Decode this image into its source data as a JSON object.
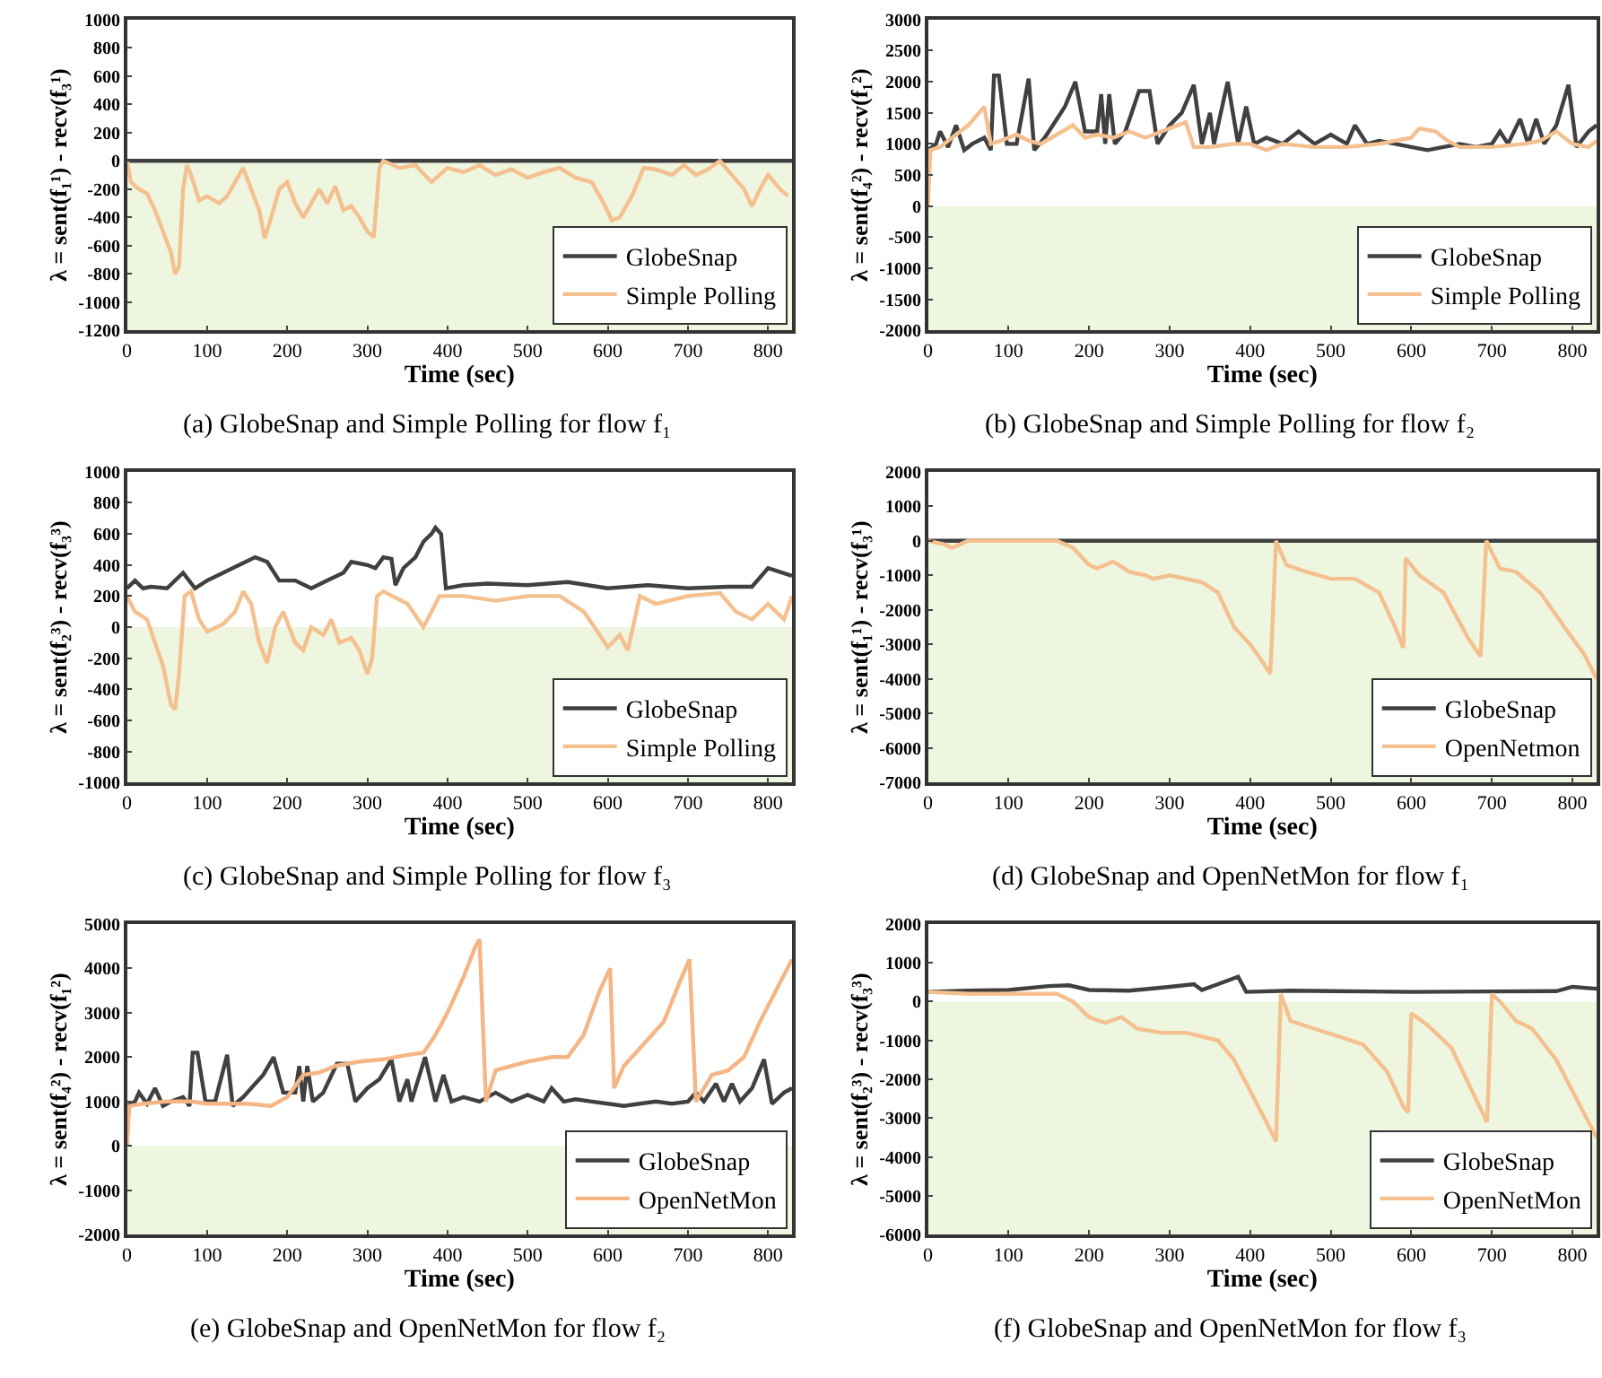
{
  "chart_data": [
    {
      "type": "line",
      "title": "(a) GlobeSnap and Simple Polling for flow f₁",
      "xlabel": "Time (sec)",
      "ylabel": "λ = sent(f₁¹) - recv(f₃¹)",
      "xlim": [
        0,
        830
      ],
      "xticks": [
        0,
        100,
        200,
        300,
        400,
        500,
        600,
        700,
        800
      ],
      "ylim": [
        -1200,
        1000
      ],
      "yticks": [
        -1200,
        -1000,
        -800,
        -600,
        -400,
        -200,
        0,
        200,
        400,
        600,
        800,
        1000
      ],
      "legend": "bottom right",
      "grid": false,
      "marker": "none",
      "line_style": "solid",
      "bands": [
        {
          "axis": "y",
          "from": -1200,
          "to": 0,
          "color": "#eef6df"
        }
      ],
      "series": [
        {
          "name": "GlobeSnap",
          "color": "#404040",
          "x": [
            0,
            830
          ],
          "values": [
            0,
            0
          ]
        },
        {
          "name": "Simple Polling",
          "color": "#f5c08f",
          "x": [
            0,
            5,
            15,
            25,
            35,
            45,
            55,
            60,
            65,
            70,
            75,
            80,
            90,
            100,
            115,
            125,
            135,
            145,
            155,
            165,
            172,
            180,
            190,
            200,
            210,
            220,
            230,
            240,
            250,
            260,
            270,
            280,
            290,
            300,
            308,
            315,
            320,
            340,
            360,
            380,
            400,
            420,
            440,
            460,
            480,
            500,
            520,
            540,
            560,
            580,
            595,
            605,
            615,
            630,
            645,
            660,
            680,
            695,
            710,
            725,
            740,
            755,
            770,
            780,
            790,
            800,
            815,
            825
          ],
          "values": [
            0,
            -150,
            -200,
            -230,
            -350,
            -500,
            -650,
            -800,
            -750,
            -200,
            -30,
            -100,
            -280,
            -250,
            -300,
            -250,
            -150,
            -50,
            -200,
            -350,
            -550,
            -400,
            -200,
            -150,
            -300,
            -400,
            -300,
            -200,
            -300,
            -180,
            -350,
            -320,
            -400,
            -500,
            -540,
            -50,
            0,
            -50,
            -30,
            -150,
            -50,
            -80,
            -30,
            -100,
            -60,
            -120,
            -80,
            -50,
            -120,
            -150,
            -300,
            -420,
            -400,
            -250,
            -50,
            -60,
            -100,
            -30,
            -100,
            -60,
            0,
            -100,
            -200,
            -320,
            -200,
            -100,
            -200,
            -250
          ]
        }
      ]
    },
    {
      "type": "line",
      "title": "(b) GlobeSnap and Simple Polling for flow f₂",
      "xlabel": "Time (sec)",
      "ylabel": "λ = sent(f₄²) - recv(f₁²)",
      "xlim": [
        0,
        830
      ],
      "xticks": [
        0,
        100,
        200,
        300,
        400,
        500,
        600,
        700,
        800
      ],
      "ylim": [
        -2000,
        3000
      ],
      "yticks": [
        -2000,
        -1500,
        -1000,
        -500,
        0,
        500,
        1000,
        1500,
        2000,
        2500,
        3000
      ],
      "legend": "bottom right",
      "grid": false,
      "marker": "none",
      "line_style": "solid",
      "bands": [
        {
          "axis": "y",
          "from": -2000,
          "to": 0,
          "color": "#eef6df"
        }
      ],
      "series": [
        {
          "name": "GlobeSnap",
          "color": "#404040",
          "x": [
            0,
            10,
            15,
            25,
            35,
            45,
            55,
            70,
            78,
            82,
            88,
            98,
            110,
            125,
            132,
            145,
            160,
            170,
            183,
            195,
            210,
            215,
            220,
            225,
            232,
            245,
            262,
            275,
            285,
            300,
            315,
            330,
            340,
            350,
            355,
            372,
            385,
            395,
            405,
            420,
            440,
            460,
            480,
            500,
            520,
            530,
            545,
            560,
            580,
            600,
            620,
            640,
            660,
            680,
            700,
            710,
            720,
            735,
            745,
            755,
            765,
            780,
            795,
            805,
            820,
            830
          ],
          "values": [
            900,
            1000,
            1200,
            950,
            1300,
            900,
            1000,
            1100,
            900,
            2100,
            2100,
            1000,
            1000,
            2050,
            900,
            1100,
            1400,
            1600,
            2000,
            1200,
            1200,
            1800,
            1000,
            1800,
            1000,
            1200,
            1850,
            1850,
            1000,
            1300,
            1500,
            1950,
            1000,
            1500,
            1000,
            2000,
            1000,
            1600,
            1000,
            1100,
            1000,
            1200,
            1000,
            1150,
            1000,
            1300,
            1000,
            1050,
            1000,
            950,
            900,
            950,
            1000,
            950,
            1000,
            1200,
            1000,
            1400,
            1000,
            1400,
            1000,
            1300,
            1950,
            950,
            1200,
            1300
          ]
        },
        {
          "name": "Simple Polling",
          "color": "#f5c08f",
          "x": [
            0,
            3,
            15,
            30,
            50,
            70,
            78,
            90,
            110,
            125,
            140,
            160,
            180,
            195,
            210,
            230,
            250,
            270,
            290,
            310,
            320,
            330,
            350,
            380,
            400,
            420,
            440,
            480,
            520,
            560,
            600,
            610,
            630,
            645,
            660,
            700,
            740,
            760,
            780,
            800,
            820,
            830
          ],
          "values": [
            0,
            900,
            950,
            1100,
            1300,
            1600,
            1000,
            1050,
            1150,
            1050,
            1000,
            1150,
            1300,
            1100,
            1150,
            1100,
            1200,
            1100,
            1200,
            1300,
            1350,
            950,
            950,
            1000,
            1000,
            900,
            1000,
            950,
            950,
            1000,
            1100,
            1250,
            1200,
            1050,
            950,
            950,
            1000,
            1050,
            1200,
            1000,
            950,
            1050
          ]
        }
      ]
    },
    {
      "type": "line",
      "title": "(c) GlobeSnap and Simple Polling for flow f₃",
      "xlabel": "Time (sec)",
      "ylabel": "λ = sent(f₂³) - recv(f₃³)",
      "xlim": [
        0,
        830
      ],
      "xticks": [
        0,
        100,
        200,
        300,
        400,
        500,
        600,
        700,
        800
      ],
      "ylim": [
        -1000,
        1000
      ],
      "yticks": [
        -1000,
        -800,
        -600,
        -400,
        -200,
        0,
        200,
        400,
        600,
        800,
        1000
      ],
      "legend": "bottom right",
      "grid": false,
      "marker": "none",
      "line_style": "solid",
      "bands": [
        {
          "axis": "y",
          "from": -1000,
          "to": 0,
          "color": "#eef6df"
        }
      ],
      "series": [
        {
          "name": "GlobeSnap",
          "color": "#404040",
          "x": [
            0,
            10,
            20,
            30,
            50,
            70,
            85,
            100,
            120,
            140,
            160,
            175,
            190,
            210,
            230,
            250,
            270,
            280,
            300,
            310,
            320,
            330,
            335,
            345,
            360,
            370,
            380,
            385,
            392,
            398,
            420,
            450,
            500,
            550,
            600,
            650,
            700,
            750,
            780,
            800,
            830
          ],
          "values": [
            250,
            300,
            250,
            260,
            250,
            350,
            250,
            300,
            350,
            400,
            450,
            420,
            300,
            300,
            250,
            300,
            350,
            420,
            400,
            380,
            450,
            440,
            270,
            380,
            450,
            550,
            600,
            640,
            600,
            250,
            270,
            280,
            270,
            290,
            250,
            270,
            250,
            260,
            260,
            380,
            330
          ]
        },
        {
          "name": "Simple Polling",
          "color": "#f5c08f",
          "x": [
            0,
            10,
            25,
            35,
            45,
            55,
            60,
            65,
            72,
            80,
            90,
            100,
            120,
            135,
            145,
            155,
            165,
            175,
            185,
            195,
            210,
            220,
            230,
            245,
            255,
            265,
            280,
            290,
            300,
            306,
            312,
            320,
            350,
            370,
            390,
            420,
            460,
            500,
            540,
            570,
            590,
            600,
            615,
            625,
            640,
            660,
            700,
            740,
            760,
            780,
            800,
            820,
            830
          ],
          "values": [
            200,
            100,
            50,
            -100,
            -250,
            -500,
            -530,
            -300,
            200,
            230,
            50,
            -30,
            20,
            100,
            230,
            150,
            -100,
            -230,
            0,
            100,
            -100,
            -150,
            0,
            -50,
            50,
            -100,
            -70,
            -150,
            -300,
            -200,
            200,
            230,
            150,
            0,
            200,
            200,
            170,
            200,
            200,
            100,
            -50,
            -130,
            -50,
            -150,
            200,
            150,
            200,
            220,
            100,
            50,
            150,
            50,
            200
          ]
        }
      ]
    },
    {
      "type": "line",
      "title": "(d) GlobeSnap and OpenNetMon for flow f₁",
      "xlabel": "Time (sec)",
      "ylabel": "λ = sent(f₁¹) - recv(f₃¹)",
      "xlim": [
        0,
        830
      ],
      "xticks": [
        0,
        100,
        200,
        300,
        400,
        500,
        600,
        700,
        800
      ],
      "ylim": [
        -7000,
        2000
      ],
      "yticks": [
        -7000,
        -6000,
        -5000,
        -4000,
        -3000,
        -2000,
        -1000,
        0,
        1000,
        2000
      ],
      "legend": "bottom right",
      "grid": false,
      "marker": "none",
      "line_style": "solid",
      "bands": [
        {
          "axis": "y",
          "from": -7000,
          "to": 0,
          "color": "#eef6df"
        }
      ],
      "series": [
        {
          "name": "GlobeSnap",
          "color": "#404040",
          "x": [
            0,
            830
          ],
          "values": [
            0,
            0
          ]
        },
        {
          "name": "OpenNetmon",
          "color": "#f5c08f",
          "x": [
            0,
            20,
            30,
            50,
            100,
            160,
            180,
            200,
            210,
            230,
            250,
            270,
            280,
            300,
            320,
            340,
            360,
            380,
            400,
            415,
            425,
            432,
            445,
            470,
            500,
            530,
            560,
            580,
            590,
            593,
            610,
            640,
            670,
            686,
            693,
            710,
            730,
            760,
            790,
            815,
            830
          ],
          "values": [
            0,
            -100,
            -200,
            0,
            0,
            0,
            -200,
            -700,
            -800,
            -600,
            -900,
            -1000,
            -1100,
            -1000,
            -1100,
            -1200,
            -1500,
            -2500,
            -3000,
            -3500,
            -3850,
            0,
            -700,
            -900,
            -1100,
            -1100,
            -1500,
            -2500,
            -3100,
            -500,
            -1000,
            -1500,
            -2800,
            -3350,
            0,
            -800,
            -900,
            -1500,
            -2500,
            -3300,
            -4000
          ]
        }
      ]
    },
    {
      "type": "line",
      "title": "(e) GlobeSnap and OpenNetMon for flow f₂",
      "xlabel": "Time (sec)",
      "ylabel": "λ = sent(f₄²) - recv(f₁²)",
      "xlim": [
        0,
        830
      ],
      "xticks": [
        0,
        100,
        200,
        300,
        400,
        500,
        600,
        700,
        800
      ],
      "ylim": [
        -2000,
        5000
      ],
      "yticks": [
        -2000,
        -1000,
        0,
        1000,
        2000,
        3000,
        4000,
        5000
      ],
      "legend": "bottom right",
      "grid": false,
      "marker": "none",
      "line_style": "solid",
      "bands": [
        {
          "axis": "y",
          "from": -2000,
          "to": 0,
          "color": "#eef6df"
        }
      ],
      "series": [
        {
          "name": "GlobeSnap",
          "color": "#404040",
          "x": [
            0,
            10,
            15,
            25,
            35,
            45,
            55,
            70,
            78,
            82,
            88,
            98,
            110,
            125,
            132,
            145,
            160,
            170,
            183,
            195,
            210,
            215,
            220,
            225,
            232,
            245,
            262,
            275,
            285,
            300,
            315,
            330,
            340,
            350,
            355,
            372,
            385,
            395,
            405,
            420,
            440,
            460,
            480,
            500,
            520,
            530,
            545,
            560,
            580,
            600,
            620,
            640,
            660,
            680,
            700,
            710,
            720,
            735,
            745,
            755,
            765,
            780,
            795,
            805,
            820,
            830
          ],
          "values": [
            900,
            1000,
            1200,
            950,
            1300,
            900,
            1000,
            1100,
            900,
            2100,
            2100,
            1000,
            1000,
            2050,
            900,
            1100,
            1400,
            1600,
            2000,
            1200,
            1200,
            1800,
            1000,
            1800,
            1000,
            1200,
            1850,
            1850,
            1000,
            1300,
            1500,
            1950,
            1000,
            1500,
            1000,
            2000,
            1000,
            1600,
            1000,
            1100,
            1000,
            1200,
            1000,
            1150,
            1000,
            1300,
            1000,
            1050,
            1000,
            950,
            900,
            950,
            1000,
            950,
            1000,
            1200,
            1000,
            1400,
            1000,
            1400,
            1000,
            1300,
            1950,
            950,
            1200,
            1300
          ]
        },
        {
          "name": "OpenNetMon",
          "color": "#f5b584",
          "x": [
            0,
            3,
            20,
            50,
            80,
            100,
            150,
            180,
            200,
            220,
            240,
            260,
            290,
            320,
            350,
            370,
            385,
            400,
            420,
            435,
            440,
            448,
            460,
            480,
            500,
            530,
            550,
            570,
            590,
            603,
            608,
            620,
            640,
            670,
            690,
            702,
            710,
            730,
            750,
            770,
            790,
            810,
            830
          ],
          "values": [
            0,
            900,
            950,
            1000,
            1000,
            950,
            950,
            900,
            1100,
            1600,
            1650,
            1800,
            1900,
            1950,
            2050,
            2100,
            2500,
            3000,
            3800,
            4500,
            4650,
            1000,
            1700,
            1800,
            1900,
            2000,
            2000,
            2500,
            3500,
            4000,
            1300,
            1800,
            2200,
            2800,
            3700,
            4200,
            1000,
            1600,
            1700,
            2000,
            2800,
            3500,
            4200
          ]
        }
      ]
    },
    {
      "type": "line",
      "title": "(f) GlobeSnap and OpenNetMon for flow f₃",
      "xlabel": "Time (sec)",
      "ylabel": "λ = sent(f₂³) - recv(f₃³)",
      "xlim": [
        0,
        830
      ],
      "xticks": [
        0,
        100,
        200,
        300,
        400,
        500,
        600,
        700,
        800
      ],
      "ylim": [
        -6000,
        2000
      ],
      "yticks": [
        -6000,
        -5000,
        -4000,
        -3000,
        -2000,
        -1000,
        0,
        1000,
        2000
      ],
      "legend": "bottom right",
      "grid": false,
      "marker": "none",
      "line_style": "solid",
      "bands": [
        {
          "axis": "y",
          "from": -6000,
          "to": 0,
          "color": "#eef6df"
        }
      ],
      "series": [
        {
          "name": "GlobeSnap",
          "color": "#404040",
          "x": [
            0,
            50,
            100,
            150,
            175,
            200,
            250,
            300,
            330,
            340,
            360,
            385,
            395,
            450,
            500,
            600,
            700,
            780,
            800,
            830
          ],
          "values": [
            250,
            280,
            300,
            400,
            420,
            300,
            280,
            380,
            450,
            300,
            450,
            640,
            250,
            280,
            270,
            250,
            260,
            270,
            380,
            330
          ]
        },
        {
          "name": "OpenNetMon",
          "color": "#f5c08f",
          "x": [
            0,
            50,
            100,
            160,
            180,
            200,
            220,
            240,
            260,
            290,
            320,
            340,
            360,
            380,
            400,
            420,
            432,
            438,
            450,
            480,
            510,
            540,
            570,
            590,
            596,
            600,
            620,
            650,
            680,
            694,
            700,
            710,
            730,
            750,
            780,
            800,
            830
          ],
          "values": [
            250,
            200,
            200,
            200,
            0,
            -400,
            -550,
            -400,
            -700,
            -800,
            -800,
            -900,
            -1000,
            -1500,
            -2300,
            -3100,
            -3600,
            200,
            -500,
            -700,
            -900,
            -1100,
            -1800,
            -2700,
            -2850,
            -300,
            -600,
            -1200,
            -2500,
            -3100,
            200,
            0,
            -500,
            -700,
            -1500,
            -2300,
            -3500
          ]
        }
      ]
    }
  ]
}
